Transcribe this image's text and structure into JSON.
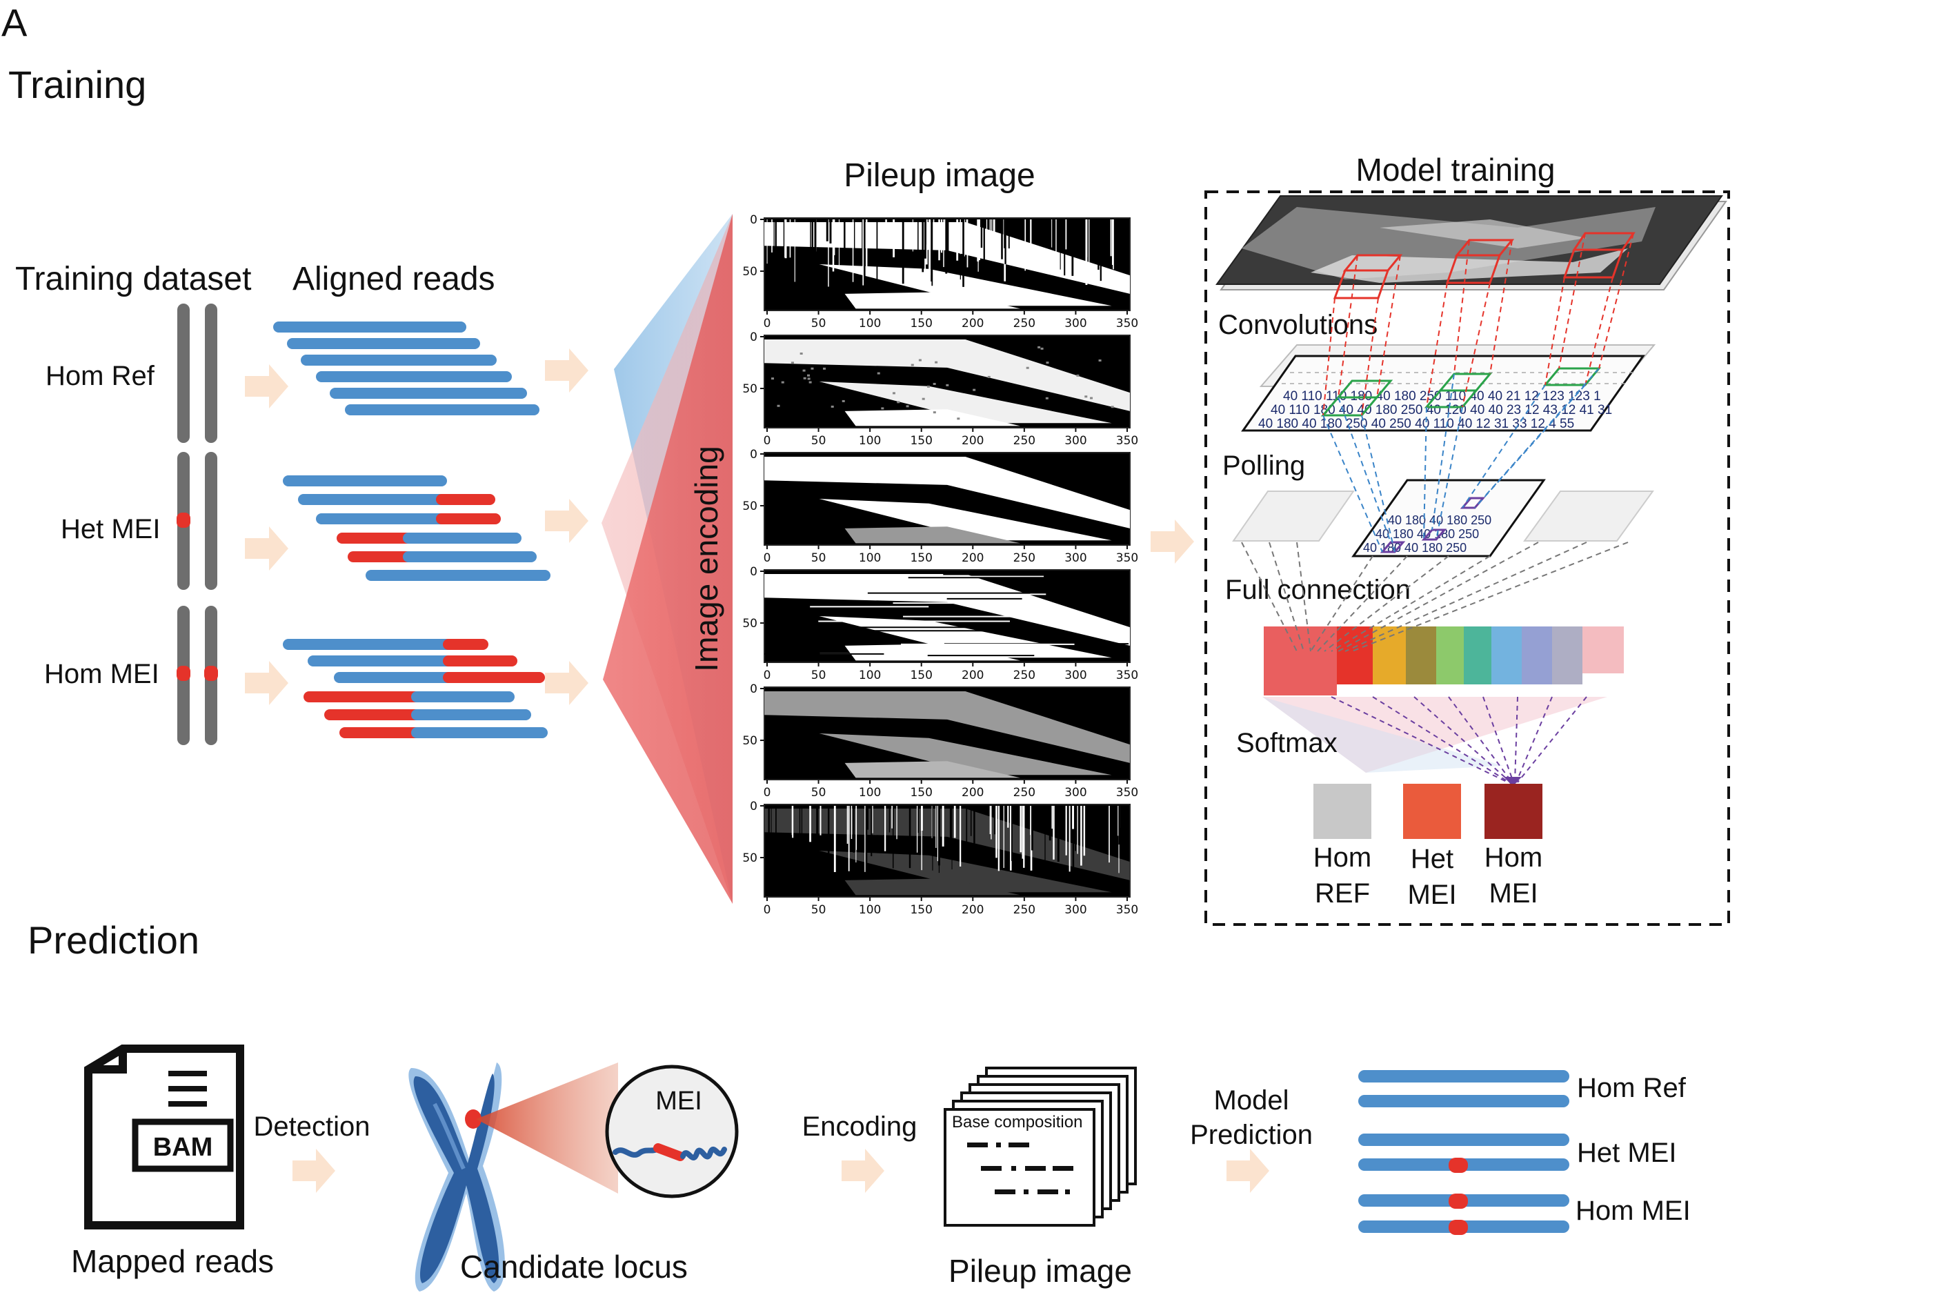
{
  "panel_letter": "A",
  "training": {
    "title": "Training",
    "dataset_label": "Training dataset",
    "aligned_label": "Aligned reads",
    "genotypes": [
      "Hom Ref",
      "Het MEI",
      "Hom MEI"
    ],
    "encoding_label": "Image encoding",
    "pileup_title": "Pileup image",
    "pileup_x_ticks": [
      "0",
      "50",
      "100",
      "150",
      "200",
      "250",
      "300",
      "350"
    ],
    "pileup_y_ticks": [
      "0",
      "50"
    ],
    "model_title": "Model training",
    "layers": {
      "convolutions": "Convolutions",
      "polling": "Polling",
      "full_connection": "Full connection",
      "softmax": "Softmax"
    },
    "conv_matrix_rows": [
      "40 110 110  180 40 180 250 110 40 40 21 12 123 123 1",
      "40 110 180 40 40 180 250 40 120 40 40 23 12 43 12 41 31",
      "40 180 40 180 250 40 250 40 110 40 12 31 33 12 4 55"
    ],
    "pool_matrix_rows": [
      "40 180 40 180 250",
      "40 180 40 180 250",
      "40 180 40 180 250"
    ],
    "outputs": [
      {
        "line1": "Hom",
        "line2": "REF",
        "color": "#c8c8c8"
      },
      {
        "line1": "Het",
        "line2": "MEI",
        "color": "#ea5b3c"
      },
      {
        "line1": "Hom",
        "line2": "MEI",
        "color": "#9a2420"
      }
    ],
    "fc_colors": [
      "#e95f5f",
      "#e5332a",
      "#e6aa2a",
      "#9b8a3c",
      "#8dc96b",
      "#4db59a",
      "#73b3df",
      "#7a88c8",
      "#9a9ab5",
      "#f4bcc0"
    ]
  },
  "prediction": {
    "title": "Prediction",
    "bam_label": "BAM",
    "mapped_reads": "Mapped reads",
    "detection": "Detection",
    "candidate_locus": "Candidate  locus",
    "mei_label": "MEI",
    "encoding": "Encoding",
    "base_composition": "Base composition",
    "pileup_image": "Pileup image",
    "model_prediction_line1": "Model",
    "model_prediction_line2": "Prediction",
    "results": [
      "Hom Ref",
      "Het MEI",
      "Hom MEI"
    ]
  },
  "colors": {
    "read_blue": "#4e8fcb",
    "mei_red": "#e5332a",
    "chromosome_gray": "#6e6e6e",
    "arrow_peach": "#fbe3cf"
  }
}
